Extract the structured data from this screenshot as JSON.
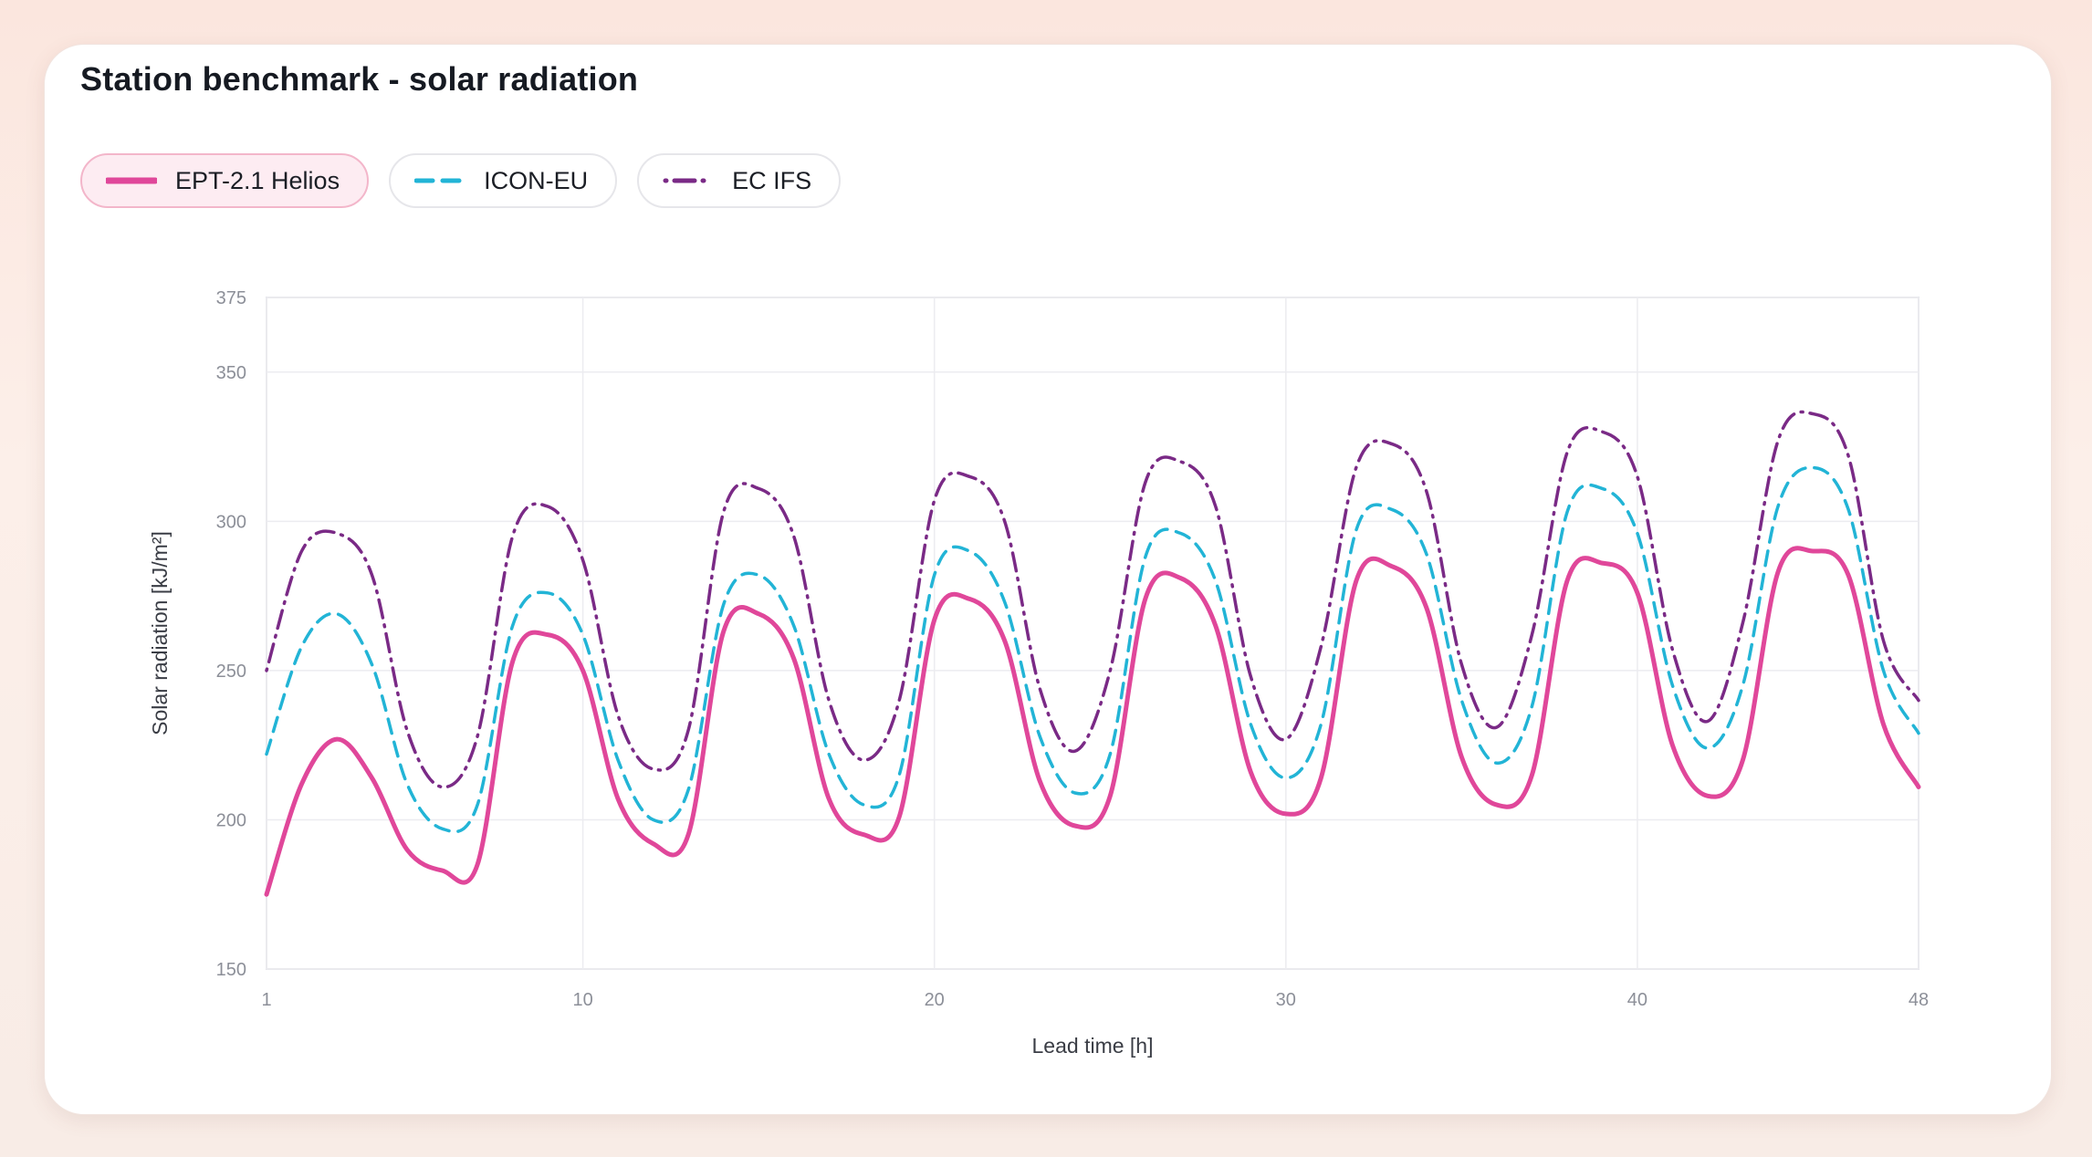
{
  "title": "Station benchmark - solar radiation",
  "legend": [
    {
      "label": "EPT-2.1 Helios",
      "color": "#e0479a",
      "dash": "solid",
      "active": true
    },
    {
      "label": "ICON-EU",
      "color": "#22b4d6",
      "dash": "dashed",
      "active": false
    },
    {
      "label": "EC IFS",
      "color": "#7a2a86",
      "dash": "dashdot",
      "active": false
    }
  ],
  "chart_data": {
    "type": "line",
    "xlabel": "Lead time [h]",
    "ylabel": "Solar radiation [kJ/m²]",
    "xlim": [
      1,
      48
    ],
    "ylim": [
      150,
      375
    ],
    "xticks": [
      1,
      10,
      20,
      30,
      40,
      48
    ],
    "yticks": [
      150,
      200,
      250,
      300,
      350,
      375
    ],
    "grid": true,
    "legend_position": "top-left",
    "x": [
      1,
      2,
      3,
      4,
      5,
      6,
      7,
      8,
      9,
      10,
      11,
      12,
      13,
      14,
      15,
      16,
      17,
      18,
      19,
      20,
      21,
      22,
      23,
      24,
      25,
      26,
      27,
      28,
      29,
      30,
      31,
      32,
      33,
      34,
      35,
      36,
      37,
      38,
      39,
      40,
      41,
      42,
      43,
      44,
      45,
      46,
      47,
      48
    ],
    "series": [
      {
        "name": "EPT-2.1 Helios",
        "color": "#e0479a",
        "values": [
          175,
          212,
          227,
          214,
          190,
          183,
          185,
          253,
          262,
          250,
          207,
          192,
          195,
          263,
          269,
          254,
          207,
          195,
          201,
          267,
          274,
          260,
          213,
          198,
          208,
          274,
          281,
          265,
          216,
          202,
          214,
          280,
          285,
          271,
          221,
          205,
          215,
          280,
          286,
          276,
          225,
          208,
          220,
          283,
          290,
          282,
          232,
          211
        ]
      },
      {
        "name": "ICON-EU",
        "color": "#22b4d6",
        "values": [
          222,
          258,
          269,
          252,
          212,
          197,
          205,
          265,
          276,
          262,
          220,
          200,
          210,
          272,
          282,
          265,
          222,
          205,
          215,
          282,
          290,
          273,
          228,
          209,
          222,
          288,
          296,
          280,
          232,
          214,
          232,
          297,
          304,
          289,
          240,
          219,
          238,
          303,
          311,
          296,
          245,
          224,
          245,
          305,
          318,
          304,
          250,
          229
        ]
      },
      {
        "name": "EC IFS",
        "color": "#7a2a86",
        "values": [
          250,
          290,
          296,
          282,
          230,
          211,
          228,
          295,
          305,
          287,
          235,
          217,
          230,
          303,
          311,
          295,
          240,
          220,
          240,
          307,
          315,
          300,
          244,
          223,
          250,
          313,
          320,
          305,
          248,
          227,
          258,
          318,
          326,
          310,
          252,
          231,
          262,
          323,
          330,
          315,
          257,
          233,
          266,
          327,
          336,
          322,
          260,
          240
        ]
      }
    ]
  }
}
